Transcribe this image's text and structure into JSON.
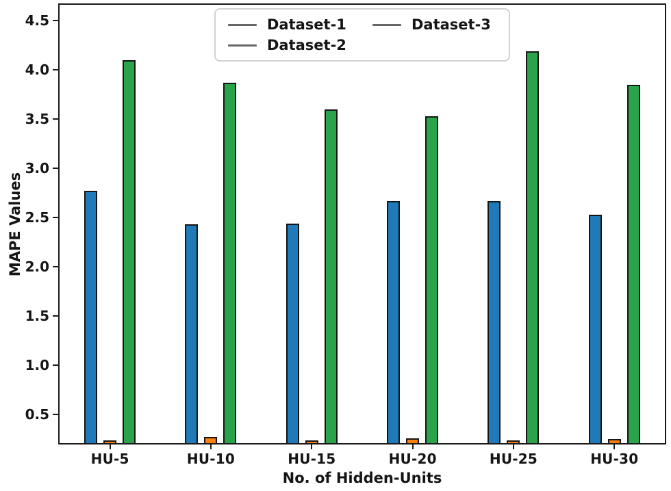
{
  "figure": {
    "background": "#ffffff",
    "spine_color": "#1a1a1a"
  },
  "chart_data": {
    "type": "bar",
    "title": "",
    "xlabel": "No. of Hidden-Units",
    "ylabel": "MAPE Values",
    "categories": [
      "HU-5",
      "HU-10",
      "HU-15",
      "HU-20",
      "HU-25",
      "HU-30"
    ],
    "series": [
      {
        "name": "Dataset-1",
        "color": "#2079b8",
        "values": [
          2.77,
          2.43,
          2.44,
          2.67,
          2.67,
          2.53
        ]
      },
      {
        "name": "Dataset-2",
        "color": "#ff7f0e",
        "values": [
          0.24,
          0.27,
          0.24,
          0.26,
          0.24,
          0.25
        ]
      },
      {
        "name": "Dataset-3",
        "color": "#2aa34a",
        "values": [
          4.1,
          3.87,
          3.6,
          3.53,
          4.19,
          3.85
        ]
      }
    ],
    "bar_edge_color": "#151515",
    "ylim": [
      0.21,
      4.66
    ],
    "yticks": [
      "0.5",
      "1.0",
      "1.5",
      "2.0",
      "2.5",
      "3.0",
      "3.5",
      "4.0",
      "4.5"
    ],
    "grid": false,
    "legend": {
      "position": "upper center",
      "columns": 2,
      "handle_style": "line",
      "handle_color": "#666666",
      "entries": [
        "Dataset-1",
        "Dataset-2",
        "Dataset-3"
      ]
    }
  }
}
